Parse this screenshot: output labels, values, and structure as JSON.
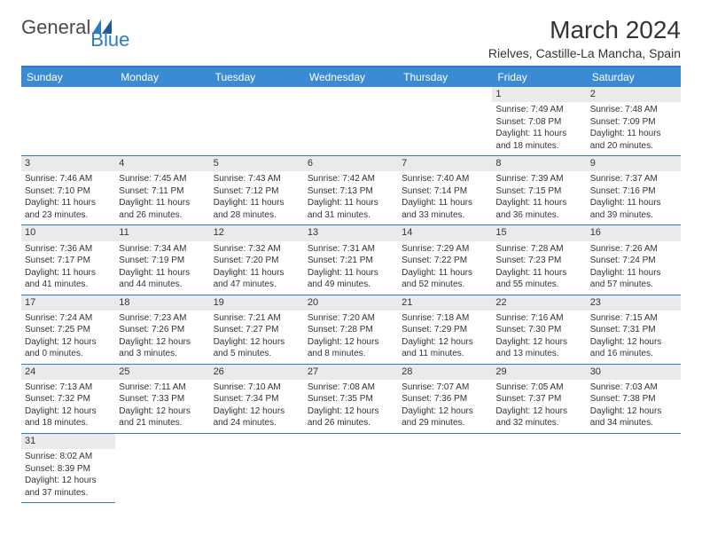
{
  "logo": {
    "text_a": "General",
    "text_b": "Blue"
  },
  "title": "March 2024",
  "location": "Rielves, Castille-La Mancha, Spain",
  "colors": {
    "header_bg": "#3b8bd4",
    "rule": "#2d7bc4",
    "daynum_bg": "#eaeaea",
    "text": "#333333",
    "page_bg": "#ffffff"
  },
  "typography": {
    "title_fontsize": 28,
    "location_fontsize": 14,
    "dayheader_fontsize": 12,
    "daynum_fontsize": 11,
    "daydata_fontsize": 10,
    "font_family": "Arial"
  },
  "day_headers": [
    "Sunday",
    "Monday",
    "Tuesday",
    "Wednesday",
    "Thursday",
    "Friday",
    "Saturday"
  ],
  "weeks": [
    [
      null,
      null,
      null,
      null,
      null,
      {
        "n": "1",
        "sunrise": "7:49 AM",
        "sunset": "7:08 PM",
        "daylight": "11 hours and 18 minutes."
      },
      {
        "n": "2",
        "sunrise": "7:48 AM",
        "sunset": "7:09 PM",
        "daylight": "11 hours and 20 minutes."
      }
    ],
    [
      {
        "n": "3",
        "sunrise": "7:46 AM",
        "sunset": "7:10 PM",
        "daylight": "11 hours and 23 minutes."
      },
      {
        "n": "4",
        "sunrise": "7:45 AM",
        "sunset": "7:11 PM",
        "daylight": "11 hours and 26 minutes."
      },
      {
        "n": "5",
        "sunrise": "7:43 AM",
        "sunset": "7:12 PM",
        "daylight": "11 hours and 28 minutes."
      },
      {
        "n": "6",
        "sunrise": "7:42 AM",
        "sunset": "7:13 PM",
        "daylight": "11 hours and 31 minutes."
      },
      {
        "n": "7",
        "sunrise": "7:40 AM",
        "sunset": "7:14 PM",
        "daylight": "11 hours and 33 minutes."
      },
      {
        "n": "8",
        "sunrise": "7:39 AM",
        "sunset": "7:15 PM",
        "daylight": "11 hours and 36 minutes."
      },
      {
        "n": "9",
        "sunrise": "7:37 AM",
        "sunset": "7:16 PM",
        "daylight": "11 hours and 39 minutes."
      }
    ],
    [
      {
        "n": "10",
        "sunrise": "7:36 AM",
        "sunset": "7:17 PM",
        "daylight": "11 hours and 41 minutes."
      },
      {
        "n": "11",
        "sunrise": "7:34 AM",
        "sunset": "7:19 PM",
        "daylight": "11 hours and 44 minutes."
      },
      {
        "n": "12",
        "sunrise": "7:32 AM",
        "sunset": "7:20 PM",
        "daylight": "11 hours and 47 minutes."
      },
      {
        "n": "13",
        "sunrise": "7:31 AM",
        "sunset": "7:21 PM",
        "daylight": "11 hours and 49 minutes."
      },
      {
        "n": "14",
        "sunrise": "7:29 AM",
        "sunset": "7:22 PM",
        "daylight": "11 hours and 52 minutes."
      },
      {
        "n": "15",
        "sunrise": "7:28 AM",
        "sunset": "7:23 PM",
        "daylight": "11 hours and 55 minutes."
      },
      {
        "n": "16",
        "sunrise": "7:26 AM",
        "sunset": "7:24 PM",
        "daylight": "11 hours and 57 minutes."
      }
    ],
    [
      {
        "n": "17",
        "sunrise": "7:24 AM",
        "sunset": "7:25 PM",
        "daylight": "12 hours and 0 minutes."
      },
      {
        "n": "18",
        "sunrise": "7:23 AM",
        "sunset": "7:26 PM",
        "daylight": "12 hours and 3 minutes."
      },
      {
        "n": "19",
        "sunrise": "7:21 AM",
        "sunset": "7:27 PM",
        "daylight": "12 hours and 5 minutes."
      },
      {
        "n": "20",
        "sunrise": "7:20 AM",
        "sunset": "7:28 PM",
        "daylight": "12 hours and 8 minutes."
      },
      {
        "n": "21",
        "sunrise": "7:18 AM",
        "sunset": "7:29 PM",
        "daylight": "12 hours and 11 minutes."
      },
      {
        "n": "22",
        "sunrise": "7:16 AM",
        "sunset": "7:30 PM",
        "daylight": "12 hours and 13 minutes."
      },
      {
        "n": "23",
        "sunrise": "7:15 AM",
        "sunset": "7:31 PM",
        "daylight": "12 hours and 16 minutes."
      }
    ],
    [
      {
        "n": "24",
        "sunrise": "7:13 AM",
        "sunset": "7:32 PM",
        "daylight": "12 hours and 18 minutes."
      },
      {
        "n": "25",
        "sunrise": "7:11 AM",
        "sunset": "7:33 PM",
        "daylight": "12 hours and 21 minutes."
      },
      {
        "n": "26",
        "sunrise": "7:10 AM",
        "sunset": "7:34 PM",
        "daylight": "12 hours and 24 minutes."
      },
      {
        "n": "27",
        "sunrise": "7:08 AM",
        "sunset": "7:35 PM",
        "daylight": "12 hours and 26 minutes."
      },
      {
        "n": "28",
        "sunrise": "7:07 AM",
        "sunset": "7:36 PM",
        "daylight": "12 hours and 29 minutes."
      },
      {
        "n": "29",
        "sunrise": "7:05 AM",
        "sunset": "7:37 PM",
        "daylight": "12 hours and 32 minutes."
      },
      {
        "n": "30",
        "sunrise": "7:03 AM",
        "sunset": "7:38 PM",
        "daylight": "12 hours and 34 minutes."
      }
    ],
    [
      {
        "n": "31",
        "sunrise": "8:02 AM",
        "sunset": "8:39 PM",
        "daylight": "12 hours and 37 minutes."
      },
      null,
      null,
      null,
      null,
      null,
      null
    ]
  ],
  "labels": {
    "sunrise": "Sunrise: ",
    "sunset": "Sunset: ",
    "daylight": "Daylight: "
  }
}
